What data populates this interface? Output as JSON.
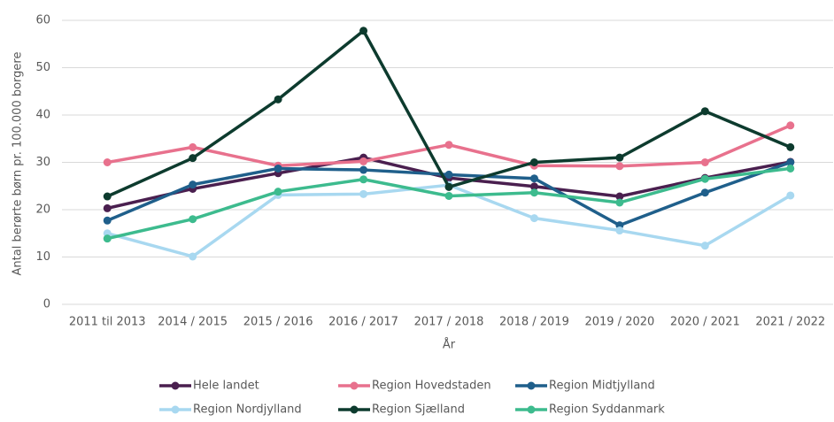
{
  "chart_data": {
    "type": "line",
    "ylabel": "Antal berørte børn  pr. 100.000 borgere",
    "xlabel": "År",
    "categories": [
      "2011 til 2013",
      "2014 / 2015",
      "2015 / 2016",
      "2016 / 2017",
      "2017 / 2018",
      "2018 / 2019",
      "2019 / 2020",
      "2020 / 2021",
      "2021 / 2022"
    ],
    "series": [
      {
        "name": "Hele landet",
        "color": "#4a1f4f",
        "values": [
          20.3,
          24.4,
          27.7,
          31,
          26.7,
          24.9,
          22.8,
          26.7,
          30.1
        ]
      },
      {
        "name": "Region Hovedstaden",
        "color": "#e8718d",
        "values": [
          30,
          33.2,
          29.3,
          30.2,
          33.7,
          29.3,
          29.2,
          30,
          37.8
        ]
      },
      {
        "name": "Region Midtjylland",
        "color": "#1f5f8b",
        "values": [
          17.7,
          25.3,
          28.7,
          28.4,
          27.4,
          26.6,
          16.7,
          23.6,
          30
        ]
      },
      {
        "name": "Region Nordjylland",
        "color": "#a8d8f0",
        "values": [
          15,
          10.1,
          23.1,
          23.3,
          25.2,
          18.2,
          15.6,
          12.4,
          23
        ]
      },
      {
        "name": "Region Sjælland",
        "color": "#0d3b2e",
        "values": [
          22.8,
          30.9,
          43.3,
          57.8,
          24.8,
          30,
          31,
          40.8,
          33.2
        ]
      },
      {
        "name": "Region Syddanmark",
        "color": "#3dbb8e",
        "values": [
          13.9,
          18,
          23.8,
          26.4,
          22.9,
          23.6,
          21.5,
          26.5,
          28.7
        ]
      }
    ],
    "ylim": [
      0,
      60
    ],
    "yticks": [
      0,
      10,
      20,
      30,
      40,
      50,
      60
    ],
    "grid": true,
    "legend": "bottom"
  }
}
